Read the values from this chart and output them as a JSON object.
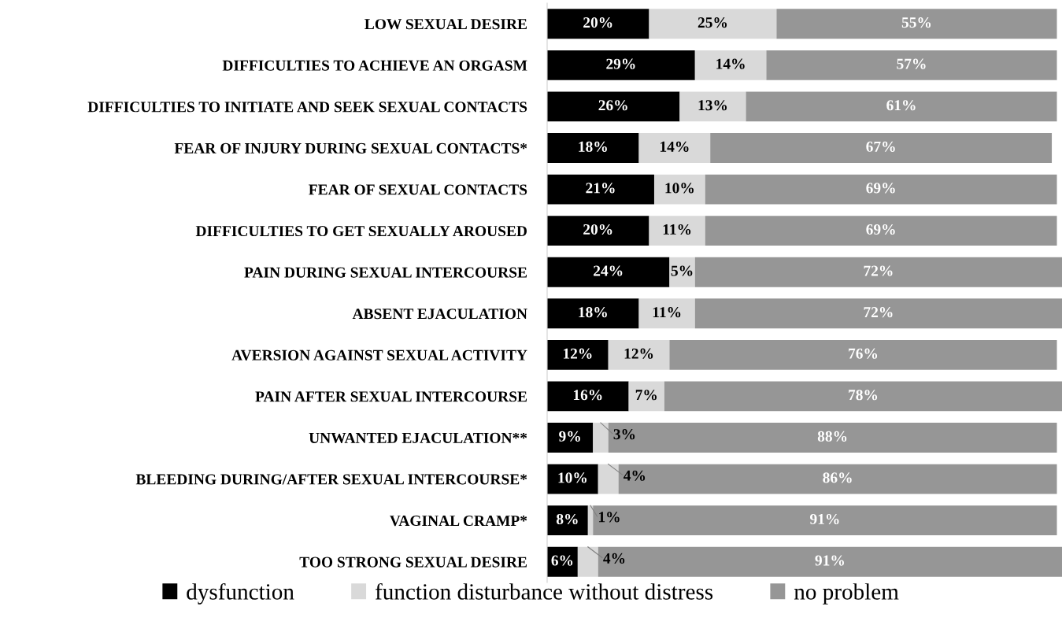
{
  "chart_data": {
    "type": "bar",
    "orientation": "horizontal",
    "stacked": true,
    "legend": "bottom",
    "grid": false,
    "categories": [
      "LOW SEXUAL DESIRE",
      "DIFFICULTIES TO ACHIEVE AN ORGASM",
      "DIFFICULTIES TO INITIATE AND SEEK SEXUAL CONTACTS",
      "FEAR OF INJURY DURING SEXUAL CONTACTS*",
      "FEAR OF SEXUAL CONTACTS",
      "DIFFICULTIES TO GET SEXUALLY AROUSED",
      "PAIN DURING SEXUAL INTERCOURSE",
      "ABSENT EJACULATION",
      "AVERSION AGAINST SEXUAL ACTIVITY",
      "PAIN AFTER SEXUAL INTERCOURSE",
      "UNWANTED EJACULATION**",
      "BLEEDING DURING/AFTER SEXUAL INTERCOURSE*",
      "VAGINAL CRAMP*",
      "TOO STRONG SEXUAL DESIRE"
    ],
    "series": [
      {
        "name": "dysfunction",
        "color": "#000000",
        "values": [
          20,
          29,
          26,
          18,
          21,
          20,
          24,
          18,
          12,
          16,
          9,
          10,
          8,
          6
        ],
        "value_labels": [
          "20%",
          "29%",
          "26%",
          "18%",
          "21%",
          "20%",
          "24%",
          "18%",
          "12%",
          "16%",
          "9%",
          "10%",
          "8%",
          "6%"
        ]
      },
      {
        "name": "function disturbance without distress",
        "color": "#d9d9d9",
        "values": [
          25,
          14,
          13,
          14,
          10,
          11,
          5,
          11,
          12,
          7,
          3,
          4,
          1,
          4
        ],
        "value_labels": [
          "25%",
          "14%",
          "13%",
          "14%",
          "10%",
          "11%",
          "5%",
          "11%",
          "12%",
          "7%",
          "3%",
          "4%",
          "1%",
          "4%"
        ]
      },
      {
        "name": "no problem",
        "color": "#969696",
        "values": [
          55,
          57,
          61,
          67,
          69,
          69,
          72,
          72,
          76,
          78,
          88,
          86,
          91,
          91
        ],
        "value_labels": [
          "55%",
          "57%",
          "61%",
          "67%",
          "69%",
          "69%",
          "72%",
          "72%",
          "76%",
          "78%",
          "88%",
          "86%",
          "91%",
          "91%"
        ]
      }
    ]
  }
}
